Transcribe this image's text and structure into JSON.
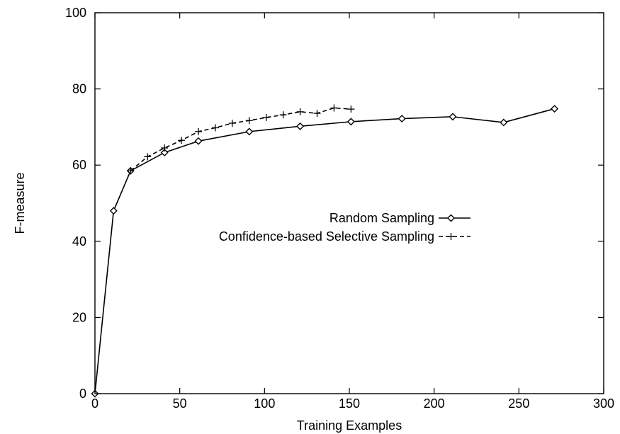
{
  "chart_data": {
    "type": "line",
    "title": "",
    "xlabel": "Training Examples",
    "ylabel": "F-measure",
    "xlim": [
      0,
      300
    ],
    "ylim": [
      0,
      100
    ],
    "xticks": [
      0,
      50,
      100,
      150,
      200,
      250,
      300
    ],
    "yticks": [
      0,
      20,
      40,
      60,
      80,
      100
    ],
    "grid": false,
    "legend_placement": "center-right",
    "series": [
      {
        "name": "Random Sampling",
        "marker": "diamond",
        "line_style": "solid",
        "color": "#000000",
        "x": [
          0,
          11,
          21,
          41,
          61,
          91,
          121,
          151,
          181,
          211,
          241,
          271
        ],
        "y": [
          0,
          48,
          58.5,
          63.3,
          66.3,
          68.8,
          70.2,
          71.4,
          72.2,
          72.7,
          71.2,
          74.8
        ]
      },
      {
        "name": "Confidence-based Selective Sampling",
        "marker": "plus",
        "line_style": "dashed",
        "color": "#000000",
        "x": [
          21,
          31,
          41,
          51,
          61,
          71,
          81,
          91,
          101,
          111,
          121,
          131,
          141,
          151
        ],
        "y": [
          58.5,
          62.2,
          64.5,
          66.5,
          68.8,
          69.8,
          71,
          71.7,
          72.5,
          73.2,
          74,
          73.6,
          75,
          74.7
        ]
      }
    ]
  }
}
